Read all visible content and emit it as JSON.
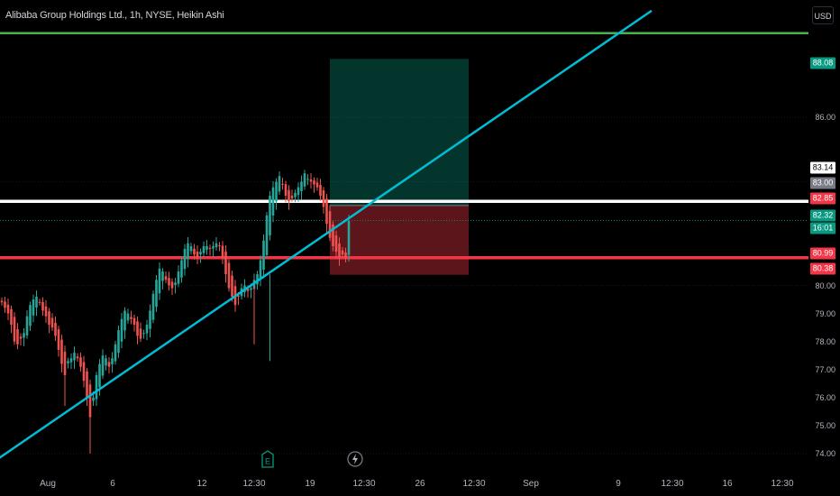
{
  "header": {
    "symbol_title": "Alibaba Group Holdings Ltd., 1h, NYSE, Heikin Ashi",
    "currency": "USD"
  },
  "price_axis": {
    "labels": [
      "86.00",
      "80.00",
      "79.00",
      "78.00",
      "77.00",
      "76.00",
      "75.00",
      "74.00"
    ],
    "tags": [
      {
        "text": "88.08",
        "bg": "#089981",
        "fg": "#ffffff"
      },
      {
        "text": "83.14",
        "bg": "#ffffff",
        "fg": "#000000"
      },
      {
        "text": "83.00",
        "bg": "#787b86",
        "fg": "#ffffff"
      },
      {
        "text": "82.85",
        "bg": "#f23645",
        "fg": "#ffffff"
      },
      {
        "text": "82.32",
        "bg": "#089981",
        "fg": "#ffffff"
      },
      {
        "text": "16:01",
        "bg": "#089981",
        "fg": "#ffffff"
      },
      {
        "text": "80.99",
        "bg": "#f23645",
        "fg": "#ffffff"
      },
      {
        "text": "80.38",
        "bg": "#f23645",
        "fg": "#ffffff"
      }
    ]
  },
  "time_axis": {
    "labels": [
      "Aug",
      "6",
      "12",
      "12:30",
      "19",
      "12:30",
      "26",
      "12:30",
      "Sep",
      "9",
      "12:30",
      "16",
      "12:30"
    ]
  },
  "events": [
    {
      "icon": "earnings-icon",
      "glyph": "E",
      "color": "#089981"
    },
    {
      "icon": "dividend-icon",
      "glyph": "⚡",
      "color": "#b2b5be"
    }
  ],
  "colors": {
    "background": "#000000",
    "up": "#26a69a",
    "down": "#ef5350",
    "trendline": "#00bcd4",
    "resistance": "#ffffff",
    "support": "#f23645",
    "top_line": "#4caf50"
  },
  "position": {
    "type": "long",
    "target": 88.08,
    "entry": 82.85,
    "stop": 80.38
  },
  "chart_data": {
    "type": "candlestick",
    "style": "Heikin Ashi",
    "interval": "1h",
    "ylim": [
      73.85,
      89.1
    ],
    "xlabel": "",
    "ylabel": "",
    "x_ticks": [
      "Aug",
      "6",
      "12",
      "12:30",
      "19",
      "12:30",
      "26",
      "12:30",
      "Sep",
      "9",
      "12:30",
      "16",
      "12:30"
    ],
    "close": [
      79.4,
      79.2,
      79.0,
      78.6,
      78.0,
      77.9,
      78.1,
      78.3,
      78.9,
      79.3,
      79.5,
      79.6,
      79.4,
      79.1,
      78.9,
      78.6,
      78.5,
      78.2,
      77.7,
      77.2,
      76.8,
      77.3,
      77.4,
      77.6,
      77.4,
      77.1,
      76.6,
      76.0,
      75.3,
      76.0,
      76.8,
      77.2,
      77.5,
      77.4,
      77.1,
      77.4,
      77.9,
      78.4,
      78.8,
      79.1,
      79.0,
      78.8,
      78.6,
      78.2,
      78.1,
      78.3,
      78.6,
      79.1,
      79.7,
      80.2,
      80.6,
      80.5,
      80.2,
      80.0,
      79.9,
      80.1,
      80.5,
      80.9,
      81.3,
      81.5,
      81.4,
      81.1,
      81.0,
      81.2,
      81.4,
      81.4,
      81.3,
      81.4,
      81.5,
      81.4,
      81.0,
      80.4,
      79.9,
      79.6,
      79.3,
      79.6,
      79.9,
      80.0,
      79.8,
      79.9,
      80.2,
      80.4,
      80.9,
      81.6,
      82.5,
      83.2,
      83.5,
      83.7,
      83.9,
      83.6,
      83.2,
      83.0,
      83.1,
      83.3,
      83.5,
      83.7,
      84.0,
      83.8,
      83.7,
      83.6,
      83.5,
      83.2,
      82.8,
      82.2,
      81.7,
      81.4,
      81.2,
      81.0,
      81.1,
      81.0,
      82.3
    ],
    "trendline": {
      "start": {
        "bar": -4,
        "price": 73.6
      },
      "end": {
        "bar": 206,
        "price": 89.8
      }
    },
    "horizontal_levels": [
      83.0,
      80.99,
      89.0
    ],
    "position_box": {
      "from_bar": 104,
      "to_bar": 148,
      "target": 88.08,
      "entry": 82.85,
      "stop": 80.38
    }
  }
}
